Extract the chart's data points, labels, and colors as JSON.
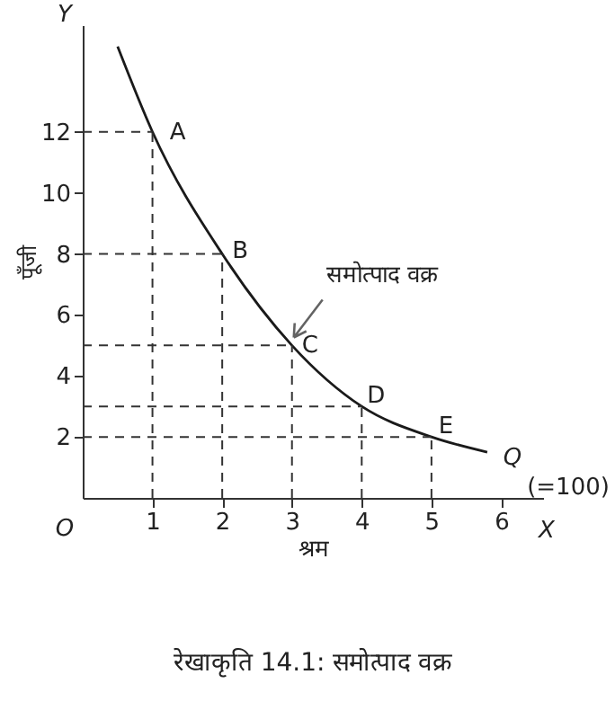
{
  "chart_data": {
    "type": "line",
    "title": "रेखाकृति 14.1: समोत्पाद वक्र",
    "xlabel": "श्रम",
    "ylabel": "पूँजी",
    "x": [
      0.5,
      1,
      2,
      3,
      4,
      5,
      5.8
    ],
    "series": [
      {
        "color": "#1a1a1a",
        "values": [
          14.8,
          12,
          8,
          5,
          3,
          2,
          1.5
        ]
      }
    ],
    "xlim": [
      0,
      6.6
    ],
    "ylim": [
      0,
      15.5
    ],
    "xticks": [
      1,
      2,
      3,
      4,
      5,
      6
    ],
    "yticks": [
      2,
      4,
      6,
      8,
      10,
      12
    ],
    "marker": "none",
    "line_style": "solid",
    "annotations": [
      {
        "text": "A",
        "x": 1,
        "y": 12
      },
      {
        "text": "B",
        "x": 2,
        "y": 8
      },
      {
        "text": "C",
        "x": 3,
        "y": 5
      },
      {
        "text": "D",
        "x": 4,
        "y": 3
      },
      {
        "text": "E",
        "x": 5,
        "y": 2
      },
      {
        "text": "Q",
        "x": 5.8,
        "y": 1.5
      },
      "(=100)",
      {
        "text": "समोत्पाद वक्र",
        "x": 3,
        "y": 5.2
      },
      "O",
      "X",
      "Y"
    ]
  }
}
